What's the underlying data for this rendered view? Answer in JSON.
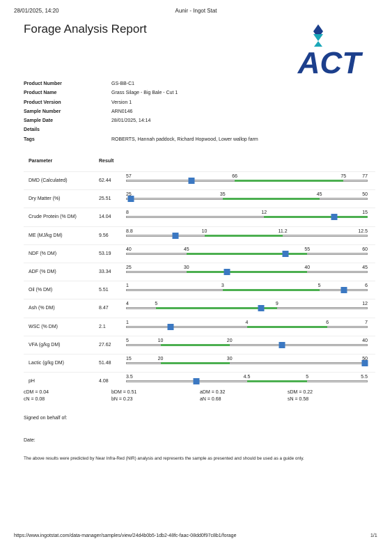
{
  "header": {
    "datetime": "28/01/2025, 14:20",
    "window_title": "Aunir - Ingot Stat"
  },
  "report_title": "Forage Analysis Report",
  "logo": {
    "text": "ACT",
    "colors": {
      "blue": "#1c3f8c",
      "teal": "#1aa7b8"
    }
  },
  "info": [
    {
      "label": "Product Number",
      "value": "GS-BB-C1"
    },
    {
      "label": "Product Name",
      "value": "Grass Silage - Big Bale - Cut 1"
    },
    {
      "label": "Product Version",
      "value": "Version 1"
    },
    {
      "label": "Sample Number",
      "value": "ARN0146"
    },
    {
      "label": "Sample Date",
      "value": "28/01/2025, 14:14"
    },
    {
      "label": "Details",
      "value": ""
    },
    {
      "label": "Tags",
      "value": "ROBERTS, Hannah paddock, Richard Hopwood, Lower wallop farm"
    }
  ],
  "table": {
    "col_parameter": "Parameter",
    "col_result": "Result",
    "colors": {
      "good_range": "#4caf50",
      "marker": "#3b78c2",
      "track": "#dcdcdc"
    },
    "rows": [
      {
        "name": "DMD (Calculated)",
        "result": "62.44",
        "min": 57,
        "max": 77,
        "ticks": [
          "57",
          "66",
          "75",
          "77"
        ],
        "good": [
          66,
          75
        ],
        "value": 62.44
      },
      {
        "name": "Dry Matter (%)",
        "result": "25.51",
        "min": 25,
        "max": 50,
        "ticks": [
          "25",
          "35",
          "45",
          "50"
        ],
        "good": [
          35,
          45
        ],
        "value": 25.51
      },
      {
        "name": "Crude Protein (% DM)",
        "result": "14.04",
        "min": 8,
        "max": 15,
        "ticks": [
          "8",
          "12",
          "15"
        ],
        "good": [
          12,
          15
        ],
        "value": 14.04
      },
      {
        "name": "ME (MJ/kg DM)",
        "result": "9.56",
        "min": 8.8,
        "max": 12.5,
        "ticks": [
          "8.8",
          "10",
          "11.2",
          "12.5"
        ],
        "good": [
          10,
          11.2
        ],
        "value": 9.56
      },
      {
        "name": "NDF (% DM)",
        "result": "53.19",
        "min": 40,
        "max": 60,
        "ticks": [
          "40",
          "45",
          "55",
          "60"
        ],
        "good": [
          45,
          55
        ],
        "value": 53.19
      },
      {
        "name": "ADF (% DM)",
        "result": "33.34",
        "min": 25,
        "max": 45,
        "ticks": [
          "25",
          "30",
          "40",
          "45"
        ],
        "good": [
          30,
          40
        ],
        "value": 33.34
      },
      {
        "name": "Oil (% DM)",
        "result": "5.51",
        "min": 1,
        "max": 6,
        "ticks": [
          "1",
          "3",
          "5",
          "6"
        ],
        "good": [
          3,
          5
        ],
        "value": 5.51
      },
      {
        "name": "Ash (% DM)",
        "result": "8.47",
        "min": 4,
        "max": 12,
        "ticks": [
          "4",
          "5",
          "9",
          "12"
        ],
        "good": [
          5,
          9
        ],
        "value": 8.47
      },
      {
        "name": "WSC (% DM)",
        "result": "2.1",
        "min": 1,
        "max": 7,
        "ticks": [
          "1",
          "4",
          "6",
          "7"
        ],
        "good": [
          4,
          6
        ],
        "value": 2.1
      },
      {
        "name": "VFA (g/kg DM)",
        "result": "27.62",
        "min": 5,
        "max": 40,
        "ticks": [
          "5",
          "10",
          "20",
          "40"
        ],
        "good": [
          10,
          20
        ],
        "value": 27.62
      },
      {
        "name": "Lactic (g/kg DM)",
        "result": "51.48",
        "min": 15,
        "max": 50,
        "ticks": [
          "15",
          "20",
          "30",
          "50"
        ],
        "good": [
          20,
          30
        ],
        "value": 51.48
      },
      {
        "name": "pH",
        "result": "4.08",
        "min": 3.5,
        "max": 5.5,
        "ticks": [
          "3.5",
          "4.5",
          "5",
          "5.5"
        ],
        "good": [
          4.5,
          5
        ],
        "value": 4.08
      }
    ]
  },
  "coefficients": [
    [
      "cDM = 0.04",
      "bDM = 0.51",
      "aDM = 0.32",
      "sDM = 0.22"
    ],
    [
      "cN = 0.08",
      "bN = 0.23",
      "aN = 0.68",
      "sN = 0.58"
    ]
  ],
  "signed_label": "Signed on behalf of:",
  "date_label": "Date:",
  "disclaimer": "The above results were predicted by Near Infra-Red (NIR) analysis and represents the sample as presented and should be used as a guide only.",
  "footer": {
    "url": "https://www.ingotstat.com/data-manager/samples/view/24d4b0b5-1db2-48fc-faac-08dd0f97c8b1/forage",
    "page": "1/1"
  }
}
